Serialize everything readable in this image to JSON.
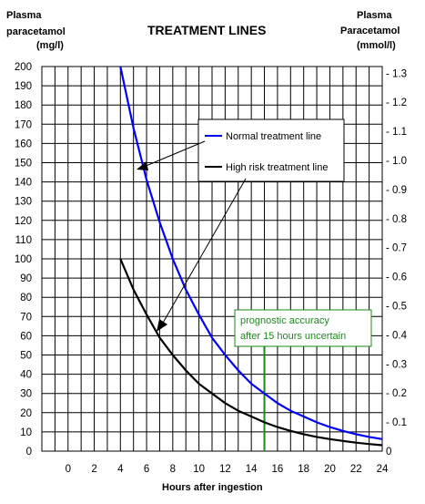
{
  "chart_data": {
    "type": "line",
    "title": "TREATMENT LINES",
    "ylabel_left": [
      "Plasma",
      "paracetamol",
      "(mg/l)"
    ],
    "ylabel_right": [
      "Plasma",
      "Paracetamol",
      "(mmol/l)"
    ],
    "xlabel": "Hours after ingestion",
    "xlim": [
      -2,
      24
    ],
    "ylim": [
      0,
      200
    ],
    "x_ticks": [
      "0",
      "2",
      "4",
      "6",
      "8",
      "10",
      "12",
      "14",
      "16",
      "18",
      "20",
      "22",
      "24"
    ],
    "y_ticks_left": [
      "0",
      "10",
      "20",
      "30",
      "40",
      "50",
      "60",
      "70",
      "80",
      "90",
      "100",
      "110",
      "120",
      "130",
      "140",
      "150",
      "160",
      "170",
      "180",
      "190",
      "200"
    ],
    "y_ticks_right": [
      "0",
      "- 0.1",
      "- 0.2",
      "- 0.3",
      "- 0.4",
      "- 0.5",
      "- 0.6",
      "- 0.7",
      "- 0.8",
      "- 0.9",
      "- 1.0",
      "- 1.1",
      "- 1.2",
      "- 1.3"
    ],
    "grid": true,
    "series": [
      {
        "name": "Normal treatment line",
        "color": "#0000ff",
        "x": [
          4,
          5,
          6,
          7,
          8,
          9,
          10,
          11,
          12,
          13,
          14,
          15,
          16,
          17,
          18,
          19,
          20,
          21,
          22,
          23,
          24
        ],
        "y": [
          200,
          168,
          141,
          119,
          100,
          84,
          71,
          59,
          50,
          42,
          35,
          30,
          25,
          21,
          18,
          15,
          12.5,
          10.5,
          8.8,
          7.4,
          6.25
        ]
      },
      {
        "name": "High risk treatment line",
        "color": "#000000",
        "x": [
          4,
          5,
          6,
          7,
          8,
          9,
          10,
          11,
          12,
          13,
          14,
          15,
          16,
          17,
          18,
          19,
          20,
          21,
          22,
          23,
          24
        ],
        "y": [
          100,
          84,
          71,
          59,
          50,
          42,
          35,
          30,
          25,
          21,
          18,
          15,
          12.5,
          10.5,
          8.8,
          7.4,
          6.25,
          5.3,
          4.4,
          3.7,
          3.1
        ]
      }
    ],
    "annotations": {
      "prognostic_note": [
        "prognostic accuracy",
        "after 15 hours uncertain"
      ],
      "prognostic_x": 15,
      "note_color": "#1a8a1a"
    }
  }
}
